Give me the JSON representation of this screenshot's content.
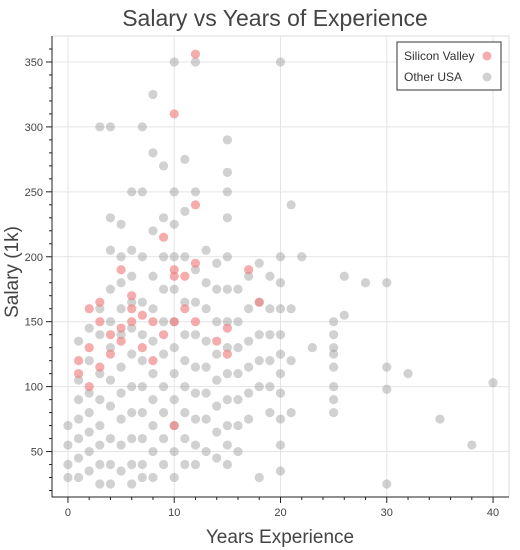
{
  "chart_data": {
    "type": "scatter",
    "title": "Salary vs Years of Experience",
    "xlabel": "Years Experience",
    "ylabel": "Salary (1k)",
    "xlim": [
      -1.5,
      41.5
    ],
    "ylim": [
      15,
      370
    ],
    "xticks": [
      0,
      10,
      20,
      30,
      40
    ],
    "yticks": [
      50,
      100,
      150,
      200,
      250,
      300,
      350
    ],
    "grid": true,
    "legend_position": "top-right",
    "series": [
      {
        "name": "Silicon Valley",
        "color": "#f08080",
        "points": [
          [
            1,
            110
          ],
          [
            1,
            120
          ],
          [
            2,
            160
          ],
          [
            2,
            130
          ],
          [
            2,
            100
          ],
          [
            3,
            165
          ],
          [
            3,
            150
          ],
          [
            3,
            115
          ],
          [
            4,
            140
          ],
          [
            4,
            125
          ],
          [
            5,
            190
          ],
          [
            5,
            145
          ],
          [
            5,
            135
          ],
          [
            6,
            170
          ],
          [
            6,
            160
          ],
          [
            6,
            150
          ],
          [
            7,
            155
          ],
          [
            7,
            130
          ],
          [
            8,
            150
          ],
          [
            8,
            120
          ],
          [
            9,
            215
          ],
          [
            9,
            140
          ],
          [
            10,
            310
          ],
          [
            10,
            190
          ],
          [
            10,
            185
          ],
          [
            10,
            150
          ],
          [
            10,
            70
          ],
          [
            11,
            185
          ],
          [
            11,
            160
          ],
          [
            12,
            356
          ],
          [
            12,
            240
          ],
          [
            12,
            195
          ],
          [
            12,
            150
          ],
          [
            14,
            135
          ],
          [
            15,
            145
          ],
          [
            15,
            125
          ],
          [
            17,
            190
          ],
          [
            18,
            165
          ]
        ]
      },
      {
        "name": "Other USA",
        "color": "#9a9a9a",
        "points": [
          [
            0,
            70
          ],
          [
            0,
            55
          ],
          [
            0,
            40
          ],
          [
            0,
            30
          ],
          [
            1,
            135
          ],
          [
            1,
            105
          ],
          [
            1,
            90
          ],
          [
            1,
            75
          ],
          [
            1,
            60
          ],
          [
            1,
            45
          ],
          [
            1,
            30
          ],
          [
            2,
            145
          ],
          [
            2,
            120
          ],
          [
            2,
            95
          ],
          [
            2,
            80
          ],
          [
            2,
            65
          ],
          [
            2,
            50
          ],
          [
            2,
            35
          ],
          [
            3,
            300
          ],
          [
            3,
            160
          ],
          [
            3,
            140
          ],
          [
            3,
            110
          ],
          [
            3,
            90
          ],
          [
            3,
            70
          ],
          [
            3,
            55
          ],
          [
            3,
            40
          ],
          [
            3,
            25
          ],
          [
            4,
            300
          ],
          [
            4,
            230
          ],
          [
            4,
            205
          ],
          [
            4,
            175
          ],
          [
            4,
            150
          ],
          [
            4,
            130
          ],
          [
            4,
            105
          ],
          [
            4,
            85
          ],
          [
            4,
            60
          ],
          [
            4,
            40
          ],
          [
            4,
            25
          ],
          [
            5,
            225
          ],
          [
            5,
            200
          ],
          [
            5,
            180
          ],
          [
            5,
            160
          ],
          [
            5,
            140
          ],
          [
            5,
            115
          ],
          [
            5,
            95
          ],
          [
            5,
            75
          ],
          [
            5,
            55
          ],
          [
            5,
            35
          ],
          [
            6,
            250
          ],
          [
            6,
            205
          ],
          [
            6,
            185
          ],
          [
            6,
            165
          ],
          [
            6,
            145
          ],
          [
            6,
            125
          ],
          [
            6,
            100
          ],
          [
            6,
            80
          ],
          [
            6,
            60
          ],
          [
            6,
            40
          ],
          [
            6,
            25
          ],
          [
            7,
            300
          ],
          [
            7,
            250
          ],
          [
            7,
            200
          ],
          [
            7,
            165
          ],
          [
            7,
            140
          ],
          [
            7,
            120
          ],
          [
            7,
            100
          ],
          [
            7,
            80
          ],
          [
            7,
            60
          ],
          [
            7,
            40
          ],
          [
            7,
            30
          ],
          [
            8,
            325
          ],
          [
            8,
            280
          ],
          [
            8,
            220
          ],
          [
            8,
            185
          ],
          [
            8,
            160
          ],
          [
            8,
            135
          ],
          [
            8,
            110
          ],
          [
            8,
            90
          ],
          [
            8,
            70
          ],
          [
            8,
            50
          ],
          [
            8,
            30
          ],
          [
            9,
            270
          ],
          [
            9,
            230
          ],
          [
            9,
            200
          ],
          [
            9,
            175
          ],
          [
            9,
            150
          ],
          [
            9,
            125
          ],
          [
            9,
            100
          ],
          [
            9,
            80
          ],
          [
            9,
            60
          ],
          [
            9,
            40
          ],
          [
            10,
            350
          ],
          [
            10,
            250
          ],
          [
            10,
            225
          ],
          [
            10,
            200
          ],
          [
            10,
            175
          ],
          [
            10,
            150
          ],
          [
            10,
            130
          ],
          [
            10,
            110
          ],
          [
            10,
            90
          ],
          [
            10,
            70
          ],
          [
            10,
            50
          ],
          [
            10,
            30
          ],
          [
            11,
            275
          ],
          [
            11,
            235
          ],
          [
            11,
            200
          ],
          [
            11,
            165
          ],
          [
            11,
            140
          ],
          [
            11,
            120
          ],
          [
            11,
            100
          ],
          [
            11,
            80
          ],
          [
            11,
            60
          ],
          [
            11,
            40
          ],
          [
            12,
            350
          ],
          [
            12,
            250
          ],
          [
            12,
            190
          ],
          [
            12,
            165
          ],
          [
            12,
            140
          ],
          [
            12,
            115
          ],
          [
            12,
            95
          ],
          [
            12,
            75
          ],
          [
            12,
            55
          ],
          [
            12,
            40
          ],
          [
            13,
            205
          ],
          [
            13,
            180
          ],
          [
            13,
            160
          ],
          [
            13,
            135
          ],
          [
            13,
            115
          ],
          [
            13,
            95
          ],
          [
            13,
            75
          ],
          [
            13,
            50
          ],
          [
            14,
            195
          ],
          [
            14,
            175
          ],
          [
            14,
            150
          ],
          [
            14,
            125
          ],
          [
            14,
            105
          ],
          [
            14,
            85
          ],
          [
            14,
            65
          ],
          [
            14,
            45
          ],
          [
            15,
            290
          ],
          [
            15,
            265
          ],
          [
            15,
            250
          ],
          [
            15,
            230
          ],
          [
            15,
            200
          ],
          [
            15,
            175
          ],
          [
            15,
            150
          ],
          [
            15,
            130
          ],
          [
            15,
            110
          ],
          [
            15,
            90
          ],
          [
            15,
            70
          ],
          [
            15,
            55
          ],
          [
            15,
            40
          ],
          [
            16,
            175
          ],
          [
            16,
            150
          ],
          [
            16,
            130
          ],
          [
            16,
            110
          ],
          [
            16,
            90
          ],
          [
            16,
            70
          ],
          [
            16,
            50
          ],
          [
            17,
            185
          ],
          [
            17,
            160
          ],
          [
            17,
            135
          ],
          [
            17,
            115
          ],
          [
            17,
            95
          ],
          [
            17,
            75
          ],
          [
            18,
            195
          ],
          [
            18,
            165
          ],
          [
            18,
            140
          ],
          [
            18,
            120
          ],
          [
            18,
            100
          ],
          [
            18,
            30
          ],
          [
            19,
            185
          ],
          [
            19,
            160
          ],
          [
            19,
            140
          ],
          [
            19,
            120
          ],
          [
            19,
            100
          ],
          [
            19,
            80
          ],
          [
            20,
            350
          ],
          [
            20,
            200
          ],
          [
            20,
            180
          ],
          [
            20,
            160
          ],
          [
            20,
            140
          ],
          [
            20,
            125
          ],
          [
            20,
            110
          ],
          [
            20,
            95
          ],
          [
            20,
            75
          ],
          [
            20,
            55
          ],
          [
            20,
            35
          ],
          [
            21,
            240
          ],
          [
            21,
            160
          ],
          [
            21,
            120
          ],
          [
            21,
            80
          ],
          [
            22,
            200
          ],
          [
            23,
            130
          ],
          [
            25,
            150
          ],
          [
            25,
            140
          ],
          [
            25,
            130
          ],
          [
            25,
            125
          ],
          [
            25,
            115
          ],
          [
            25,
            100
          ],
          [
            25,
            90
          ],
          [
            25,
            80
          ],
          [
            26,
            185
          ],
          [
            26,
            155
          ],
          [
            28,
            180
          ],
          [
            30,
            180
          ],
          [
            30,
            115
          ],
          [
            30,
            98
          ],
          [
            30,
            25
          ],
          [
            32,
            110
          ],
          [
            35,
            75
          ],
          [
            38,
            55
          ],
          [
            40,
            103
          ]
        ]
      }
    ]
  }
}
